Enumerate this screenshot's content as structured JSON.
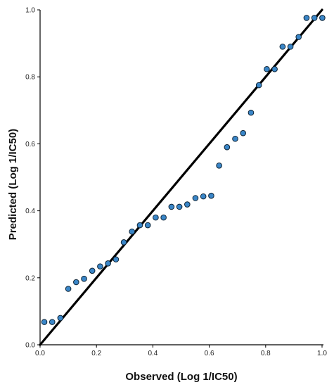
{
  "chart_data": {
    "type": "scatter",
    "title": "",
    "xlabel": "Observed (Log 1/IC50)",
    "ylabel": "Predicted (Log 1/IC50)",
    "xlim": [
      0.0,
      1.0
    ],
    "ylim": [
      0.0,
      1.0
    ],
    "x_ticks": [
      "0.0",
      "0.2",
      "0.4",
      "0.6",
      "0.8",
      "1.0"
    ],
    "y_ticks": [
      "0.0",
      "0.2",
      "0.4",
      "0.6",
      "0.8",
      "1.0"
    ],
    "grid": false,
    "legend": "none",
    "colors": {
      "point_fill": "#3a86c8",
      "point_stroke": "#0d2233",
      "fit_line": "#000000"
    },
    "fit_line": {
      "x": [
        0.0,
        1.0
      ],
      "y": [
        0.0,
        1.0
      ]
    },
    "series": [
      {
        "points": [
          [
            0.015,
            0.068
          ],
          [
            0.043,
            0.068
          ],
          [
            0.072,
            0.08
          ],
          [
            0.1,
            0.167
          ],
          [
            0.128,
            0.187
          ],
          [
            0.156,
            0.197
          ],
          [
            0.185,
            0.221
          ],
          [
            0.213,
            0.234
          ],
          [
            0.241,
            0.243
          ],
          [
            0.269,
            0.255
          ],
          [
            0.297,
            0.306
          ],
          [
            0.326,
            0.338
          ],
          [
            0.354,
            0.357
          ],
          [
            0.382,
            0.357
          ],
          [
            0.41,
            0.38
          ],
          [
            0.438,
            0.38
          ],
          [
            0.466,
            0.412
          ],
          [
            0.494,
            0.412
          ],
          [
            0.522,
            0.419
          ],
          [
            0.551,
            0.438
          ],
          [
            0.579,
            0.443
          ],
          [
            0.607,
            0.445
          ],
          [
            0.635,
            0.535
          ],
          [
            0.663,
            0.59
          ],
          [
            0.692,
            0.615
          ],
          [
            0.72,
            0.632
          ],
          [
            0.748,
            0.693
          ],
          [
            0.776,
            0.775
          ],
          [
            0.804,
            0.823
          ],
          [
            0.832,
            0.823
          ],
          [
            0.86,
            0.89
          ],
          [
            0.888,
            0.89
          ],
          [
            0.917,
            0.919
          ],
          [
            0.945,
            0.976
          ],
          [
            0.973,
            0.976
          ],
          [
            1.001,
            0.976
          ]
        ]
      }
    ]
  }
}
